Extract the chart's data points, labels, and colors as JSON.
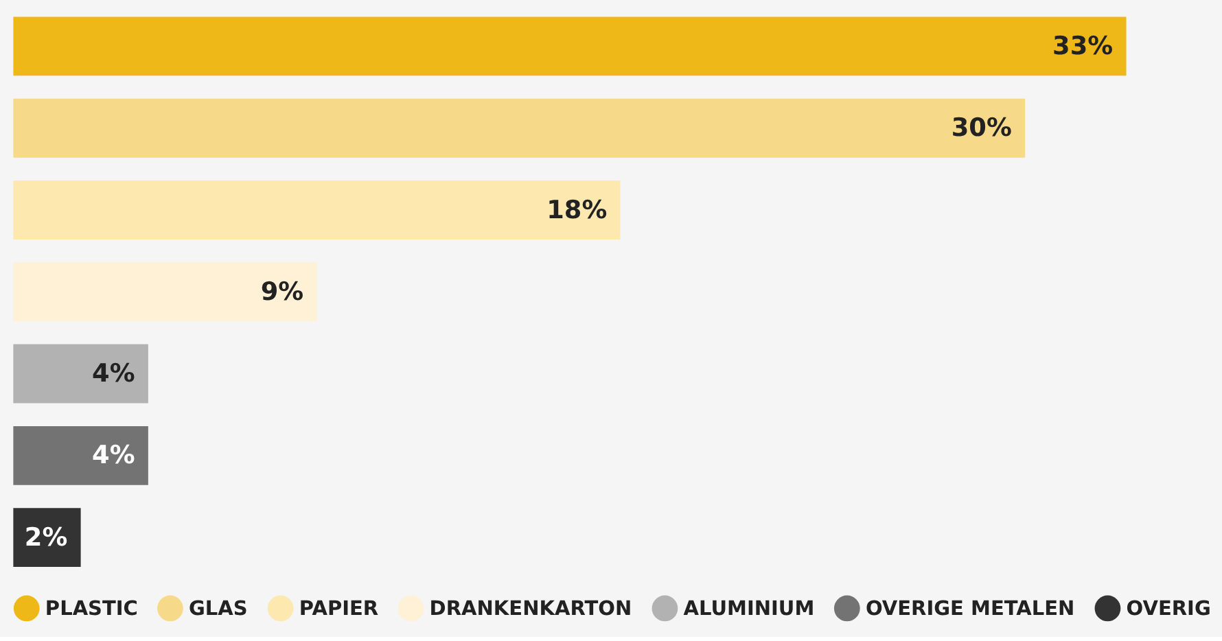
{
  "chart_data": {
    "type": "bar",
    "orientation": "horizontal",
    "categories": [
      null,
      null,
      null,
      null,
      null,
      null,
      null
    ],
    "series": [
      {
        "name": "PLASTIC",
        "color": "#efb819",
        "values": [
          33,
          null,
          null,
          null,
          null,
          null,
          null
        ],
        "value_labels": [
          "33%",
          null,
          null,
          null,
          null,
          null,
          null
        ]
      },
      {
        "name": "GLAS",
        "color": "#f6da89",
        "values": [
          null,
          30,
          null,
          null,
          null,
          null,
          null
        ],
        "value_labels": [
          null,
          "30%",
          null,
          null,
          null,
          null,
          null
        ]
      },
      {
        "name": "PAPIER",
        "color": "#fde8b0",
        "values": [
          null,
          null,
          18,
          null,
          null,
          null,
          null
        ],
        "value_labels": [
          null,
          null,
          "18%",
          null,
          null,
          null,
          null
        ]
      },
      {
        "name": "DRANKENKARTON",
        "color": "#fef1d6",
        "values": [
          null,
          null,
          null,
          9,
          null,
          null,
          null
        ],
        "value_labels": [
          null,
          null,
          null,
          "9%",
          null,
          null,
          null
        ]
      },
      {
        "name": "ALUMINIUM",
        "color": "#b2b2b2",
        "values": [
          null,
          null,
          null,
          null,
          4,
          null,
          null
        ],
        "value_labels": [
          null,
          null,
          null,
          null,
          "4%",
          null,
          null
        ]
      },
      {
        "name": "OVERIGE METALEN",
        "color": "#737373",
        "values": [
          null,
          null,
          null,
          null,
          null,
          4,
          null
        ],
        "value_labels": [
          null,
          null,
          null,
          null,
          null,
          "4%",
          null
        ]
      },
      {
        "name": "OVERIG",
        "color": "#333333",
        "values": [
          null,
          null,
          null,
          null,
          null,
          null,
          2
        ],
        "value_labels": [
          null,
          null,
          null,
          null,
          null,
          null,
          "2%"
        ]
      }
    ],
    "stacked": true,
    "tick_labels": false,
    "grid": false,
    "legend": "bottom"
  }
}
